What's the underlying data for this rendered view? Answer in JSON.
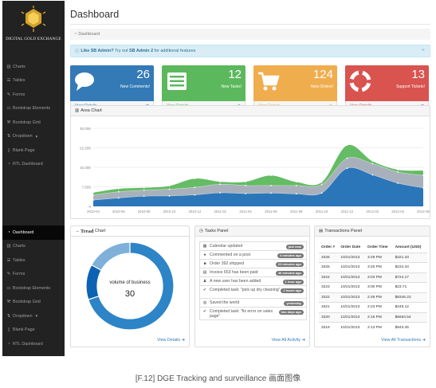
{
  "sidebar": {
    "brand": "DIGITAL GOLD EXCHANGE",
    "top_items": [
      {
        "icon": "bar-chart-icon",
        "glyph": "▥",
        "label": "Charts"
      },
      {
        "icon": "table-icon",
        "glyph": "☰",
        "label": "Tables"
      },
      {
        "icon": "edit-icon",
        "glyph": "✎",
        "label": "Forms"
      },
      {
        "icon": "desktop-icon",
        "glyph": "▭",
        "label": "Bootstrap Elements"
      },
      {
        "icon": "wrench-icon",
        "glyph": "⚒",
        "label": "Bootstrap Grid"
      },
      {
        "icon": "arrows-icon",
        "glyph": "⇅",
        "label": "Dropdown",
        "caret": "▼"
      },
      {
        "icon": "file-icon",
        "glyph": "▯",
        "label": "Blank Page"
      },
      {
        "icon": "dashboard-icon",
        "glyph": "◔",
        "label": "RTL Dashboard"
      }
    ],
    "bottom_items": [
      {
        "icon": "dashboard-icon",
        "glyph": "◔",
        "label": "Dashboard"
      },
      {
        "icon": "bar-chart-icon",
        "glyph": "▥",
        "label": "Charts"
      },
      {
        "icon": "table-icon",
        "glyph": "☰",
        "label": "Tables"
      },
      {
        "icon": "edit-icon",
        "glyph": "✎",
        "label": "Forms"
      },
      {
        "icon": "desktop-icon",
        "glyph": "▭",
        "label": "Bootstrap Elements"
      },
      {
        "icon": "wrench-icon",
        "glyph": "⚒",
        "label": "Bootstrap Grid"
      },
      {
        "icon": "arrows-icon",
        "glyph": "⇅",
        "label": "Dropdown",
        "caret": "▼"
      },
      {
        "icon": "file-icon",
        "glyph": "▯",
        "label": "Blank Page"
      },
      {
        "icon": "dashboard-icon",
        "glyph": "◔",
        "label": "RTL Dashboard"
      }
    ]
  },
  "header": {
    "title": "Dashboard",
    "breadcrumb": "Dashboard",
    "alert": {
      "prefix": "Like SB Admin?",
      "middle": " Try out ",
      "product": "SB Admin 2",
      "suffix": " for additional features",
      "close": "×"
    }
  },
  "stats": [
    {
      "value": "26",
      "label": "New Comments!",
      "footer": "View Details",
      "color": "#337ab7",
      "icon": "comments-icon"
    },
    {
      "value": "12",
      "label": "New Tasks!",
      "footer": "View Details",
      "color": "#5cb85c",
      "icon": "tasks-icon"
    },
    {
      "value": "124",
      "label": "New Orders!",
      "footer": "View Details",
      "color": "#f0ad4e",
      "icon": "shopping-cart-icon"
    },
    {
      "value": "13",
      "label": "Support Tickets!",
      "footer": "View Details",
      "color": "#d9534f",
      "icon": "support-icon"
    }
  ],
  "area_panel": {
    "title": "Area Chart"
  },
  "donut_panel": {
    "title_bold": "Tread",
    "title_rest": " Chart",
    "link": "View Details"
  },
  "tasks_panel": {
    "title": "Tasks Panel",
    "link": "View All Activity",
    "items": [
      {
        "icon": "calendar-icon",
        "glyph": "▦",
        "text": "Calendar updated",
        "badge": "just now"
      },
      {
        "icon": "comment-icon",
        "glyph": "●",
        "text": "Commented on a post",
        "badge": "4 minutes ago"
      },
      {
        "icon": "truck-icon",
        "glyph": "■",
        "text": "Order 392 shipped",
        "badge": "23 minutes ago"
      },
      {
        "icon": "money-icon",
        "glyph": "▤",
        "text": "Invoice 653 has been paid",
        "badge": "46 minutes ago"
      },
      {
        "icon": "user-icon",
        "glyph": "♟",
        "text": "A new user has been added",
        "badge": "1 hour ago"
      },
      {
        "icon": "check-icon",
        "glyph": "✔",
        "text": "Completed task: \"pick up dry cleaning\"",
        "badge": "2 hours ago"
      },
      {
        "icon": "globe-icon",
        "glyph": "◍",
        "text": "Saved the world",
        "badge": "yesterday"
      },
      {
        "icon": "check-icon",
        "glyph": "✔",
        "text": "Completed task: \"fix error on sales page\"",
        "badge": "two days ago"
      }
    ]
  },
  "trans_panel": {
    "title": "Transactions Panel",
    "link": "View All Transactions",
    "columns": [
      "Order #",
      "Order Date",
      "Order Time",
      "Amount (USD)"
    ],
    "rows": [
      [
        "3326",
        "10/21/2013",
        "3:29 PM",
        "$321.33"
      ],
      [
        "3325",
        "10/21/2013",
        "3:20 PM",
        "$234.34"
      ],
      [
        "3324",
        "10/21/2013",
        "3:03 PM",
        "$724.17"
      ],
      [
        "3323",
        "10/21/2013",
        "3:00 PM",
        "$23.71"
      ],
      [
        "3322",
        "10/21/2013",
        "2:49 PM",
        "$8345.23"
      ],
      [
        "3321",
        "10/21/2013",
        "2:23 PM",
        "$245.12"
      ],
      [
        "3320",
        "10/21/2013",
        "2:15 PM",
        "$5663.54"
      ],
      [
        "3319",
        "10/21/2013",
        "2:13 PM",
        "$943.45"
      ]
    ]
  },
  "chart_data": [
    {
      "type": "area",
      "title": "Area Chart",
      "x": [
        "2010-04",
        "2010-06",
        "2010-08",
        "2010-10",
        "2010-12",
        "2011-02",
        "2011-04",
        "2011-06",
        "2011-08",
        "2011-10",
        "2011-12",
        "2012-02",
        "2012-04",
        "2012-06"
      ],
      "yticks": [
        0,
        7500,
        15000,
        22500,
        30000
      ],
      "ylim": [
        0,
        30000
      ],
      "grid": true,
      "stacked": true,
      "series": [
        {
          "color": "#1f6fb5",
          "values": [
            2400,
            3200,
            3900,
            4000,
            4400,
            5200,
            4900,
            5100,
            4800,
            5100,
            14600,
            12100,
            8900,
            7100
          ]
        },
        {
          "color": "#a3adb7",
          "values": [
            1900,
            2400,
            2300,
            2600,
            2900,
            3300,
            3100,
            2900,
            3200,
            3300,
            3900,
            4300,
            4300,
            4800
          ]
        },
        {
          "color": "#5cb85c",
          "values": [
            1000,
            1200,
            1000,
            1300,
            3400,
            1000,
            1500,
            3900,
            1400,
            900,
            5000,
            1000,
            900,
            1900
          ]
        }
      ]
    },
    {
      "type": "pie",
      "center_label": "volume of business",
      "center_value": "30",
      "series": [
        {
          "color": "#2d84c6",
          "value": 0.7
        },
        {
          "color": "#0d62b3",
          "value": 0.13
        },
        {
          "color": "#7eb0d9",
          "value": 0.17
        }
      ]
    }
  ],
  "caption": "[F.12] DGE Tracking and surveillance 画面图像"
}
